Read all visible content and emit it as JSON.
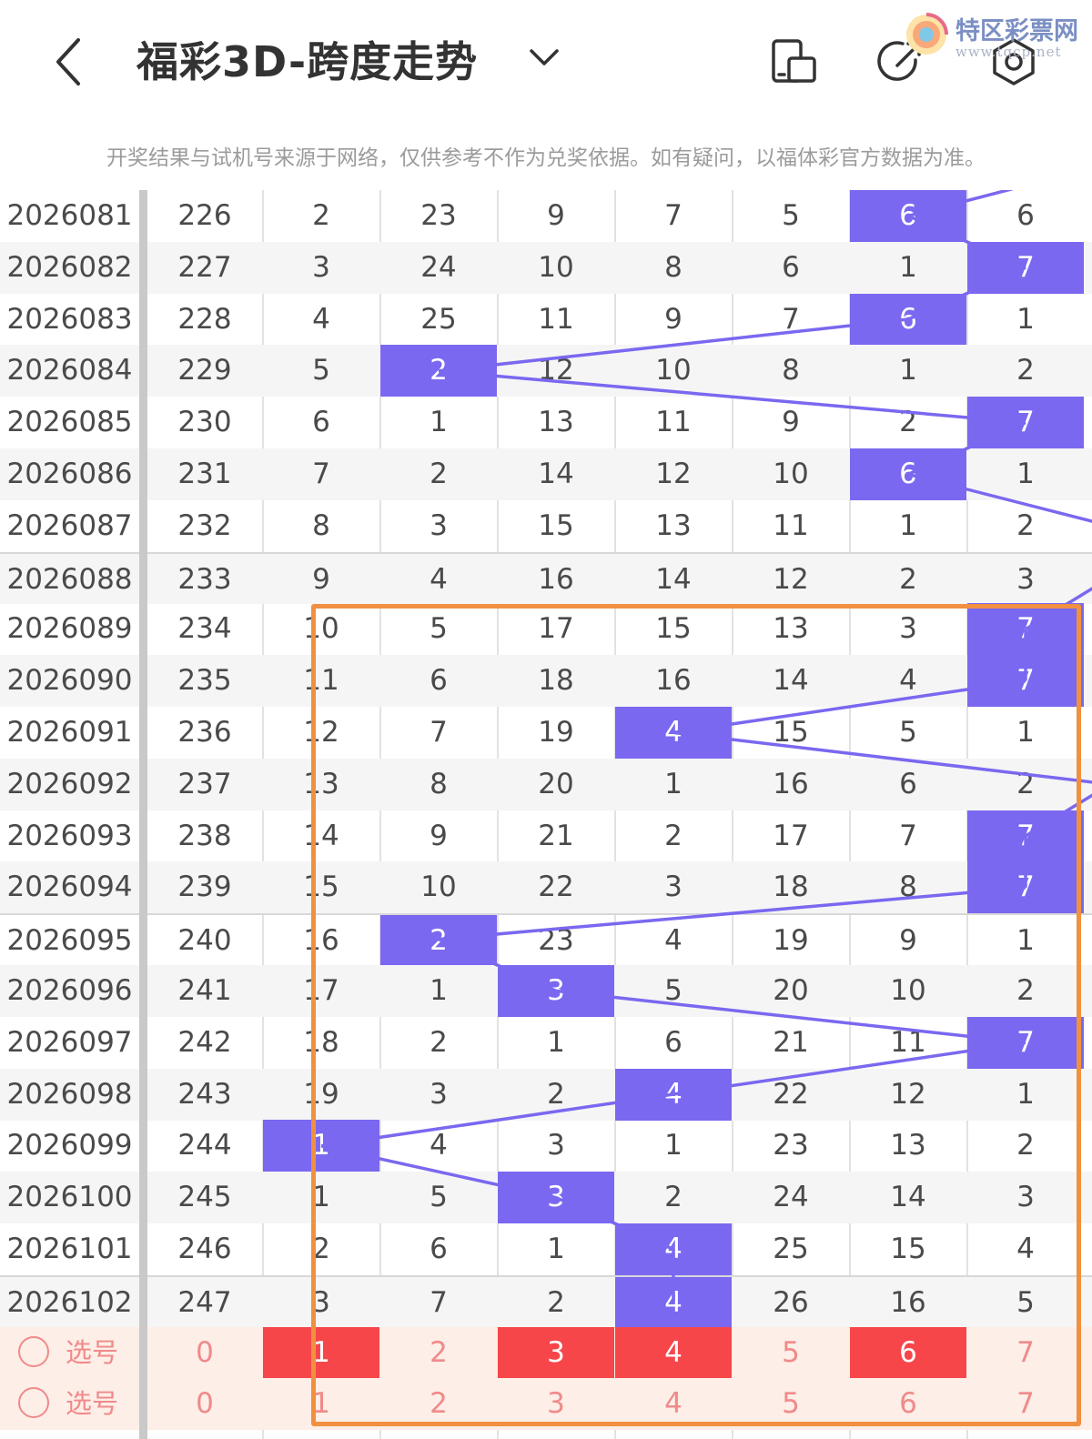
{
  "header": {
    "title": "福彩3D-跨度走势",
    "back_icon": "chevron-left-icon",
    "dropdown_icon": "chevron-down-icon",
    "icons": [
      "device-toggle-icon",
      "share-icon",
      "settings-icon"
    ]
  },
  "watermark": {
    "text": "特区彩票网",
    "url_text": "www.tqcp.net"
  },
  "notice": "开奖结果与试机号来源于网络，仅供参考不作为兑奖依据。如有疑问，以福体彩官方数据为准。",
  "colors": {
    "highlight": "#7a68f0",
    "selected": "#f6464a",
    "selector_text": "#f08a8a",
    "annotation": "#f09040"
  },
  "rows": [
    {
      "issue": "2026081",
      "sum": "226",
      "cells": [
        "2",
        "23",
        "9",
        "7",
        "5",
        "6",
        "6"
      ],
      "hit": 5
    },
    {
      "issue": "2026082",
      "sum": "227",
      "cells": [
        "3",
        "24",
        "10",
        "8",
        "6",
        "1",
        "7"
      ],
      "hit": 6
    },
    {
      "issue": "2026083",
      "sum": "228",
      "cells": [
        "4",
        "25",
        "11",
        "9",
        "7",
        "6",
        "1"
      ],
      "hit": 5
    },
    {
      "issue": "2026084",
      "sum": "229",
      "cells": [
        "5",
        "2",
        "12",
        "10",
        "8",
        "1",
        "2"
      ],
      "hit": 1
    },
    {
      "issue": "2026085",
      "sum": "230",
      "cells": [
        "6",
        "1",
        "13",
        "11",
        "9",
        "2",
        "7"
      ],
      "hit": 6
    },
    {
      "issue": "2026086",
      "sum": "231",
      "cells": [
        "7",
        "2",
        "14",
        "12",
        "10",
        "6",
        "1"
      ],
      "hit": 5
    },
    {
      "issue": "2026087",
      "sum": "232",
      "cells": [
        "8",
        "3",
        "15",
        "13",
        "11",
        "1",
        "2"
      ],
      "hit": 7
    },
    {
      "issue": "2026088",
      "sum": "233",
      "cells": [
        "9",
        "4",
        "16",
        "14",
        "12",
        "2",
        "3"
      ],
      "hit": 7
    },
    {
      "issue": "2026089",
      "sum": "234",
      "cells": [
        "10",
        "5",
        "17",
        "15",
        "13",
        "3",
        "7"
      ],
      "hit": 6
    },
    {
      "issue": "2026090",
      "sum": "235",
      "cells": [
        "11",
        "6",
        "18",
        "16",
        "14",
        "4",
        "7"
      ],
      "hit": 6
    },
    {
      "issue": "2026091",
      "sum": "236",
      "cells": [
        "12",
        "7",
        "19",
        "4",
        "15",
        "5",
        "1"
      ],
      "hit": 3
    },
    {
      "issue": "2026092",
      "sum": "237",
      "cells": [
        "13",
        "8",
        "20",
        "1",
        "16",
        "6",
        "2"
      ],
      "hit": 7
    },
    {
      "issue": "2026093",
      "sum": "238",
      "cells": [
        "14",
        "9",
        "21",
        "2",
        "17",
        "7",
        "7"
      ],
      "hit": 6
    },
    {
      "issue": "2026094",
      "sum": "239",
      "cells": [
        "15",
        "10",
        "22",
        "3",
        "18",
        "8",
        "7"
      ],
      "hit": 6
    },
    {
      "issue": "2026095",
      "sum": "240",
      "cells": [
        "16",
        "2",
        "23",
        "4",
        "19",
        "9",
        "1"
      ],
      "hit": 1
    },
    {
      "issue": "2026096",
      "sum": "241",
      "cells": [
        "17",
        "1",
        "3",
        "5",
        "20",
        "10",
        "2"
      ],
      "hit": 2
    },
    {
      "issue": "2026097",
      "sum": "242",
      "cells": [
        "18",
        "2",
        "1",
        "6",
        "21",
        "11",
        "7"
      ],
      "hit": 6
    },
    {
      "issue": "2026098",
      "sum": "243",
      "cells": [
        "19",
        "3",
        "2",
        "4",
        "22",
        "12",
        "1"
      ],
      "hit": 3
    },
    {
      "issue": "2026099",
      "sum": "244",
      "cells": [
        "1",
        "4",
        "3",
        "1",
        "23",
        "13",
        "2"
      ],
      "hit": 0
    },
    {
      "issue": "2026100",
      "sum": "245",
      "cells": [
        "1",
        "5",
        "3",
        "2",
        "24",
        "14",
        "3"
      ],
      "hit": 2
    },
    {
      "issue": "2026101",
      "sum": "246",
      "cells": [
        "2",
        "6",
        "1",
        "4",
        "25",
        "15",
        "4"
      ],
      "hit": 3
    },
    {
      "issue": "2026102",
      "sum": "247",
      "cells": [
        "3",
        "7",
        "2",
        "4",
        "26",
        "16",
        "5"
      ],
      "hit": 3
    }
  ],
  "selectors": [
    {
      "label": "选号",
      "sum": "0",
      "nums": [
        "1",
        "2",
        "3",
        "4",
        "5",
        "6",
        "7"
      ],
      "selected": [
        0,
        2,
        3,
        5
      ]
    },
    {
      "label": "选号",
      "sum": "0",
      "nums": [
        "1",
        "2",
        "3",
        "4",
        "5",
        "6",
        "7"
      ],
      "selected": []
    }
  ]
}
